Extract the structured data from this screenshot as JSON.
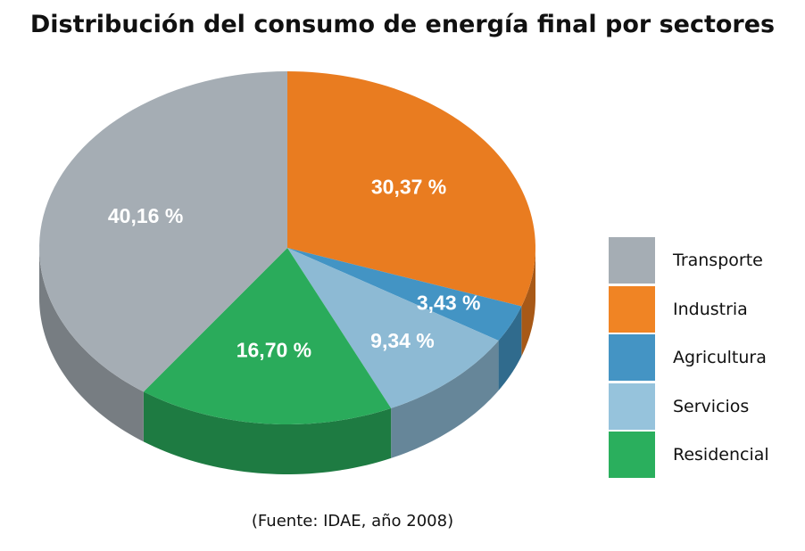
{
  "chart_data": {
    "type": "pie",
    "title": "Distribución del consumo de energía final por sectores",
    "source": "(Fuente: IDAE, año 2008)",
    "three_d": true,
    "legend_position": "right",
    "slices": [
      {
        "name": "Industria",
        "value": 30.37,
        "label": "30,37 %",
        "color": "#e97c20"
      },
      {
        "name": "Agricultura",
        "value": 3.43,
        "label": "3,43 %",
        "color": "#4394c4"
      },
      {
        "name": "Servicios",
        "value": 9.34,
        "label": "9,34 %",
        "color": "#8dbad4"
      },
      {
        "name": "Residencial",
        "value": 16.7,
        "label": "16,70 %",
        "color": "#2aab5b"
      },
      {
        "name": "Transporte",
        "value": 40.16,
        "label": "40,16 %",
        "color": "#a5adb4"
      }
    ],
    "legend": [
      {
        "name": "Transporte",
        "color": "#a5adb4"
      },
      {
        "name": "Industria",
        "color": "#f08424"
      },
      {
        "name": "Agricultura",
        "color": "#4494c4"
      },
      {
        "name": "Servicios",
        "color": "#96c3dc"
      },
      {
        "name": "Residencial",
        "color": "#2aaf5d"
      }
    ]
  }
}
